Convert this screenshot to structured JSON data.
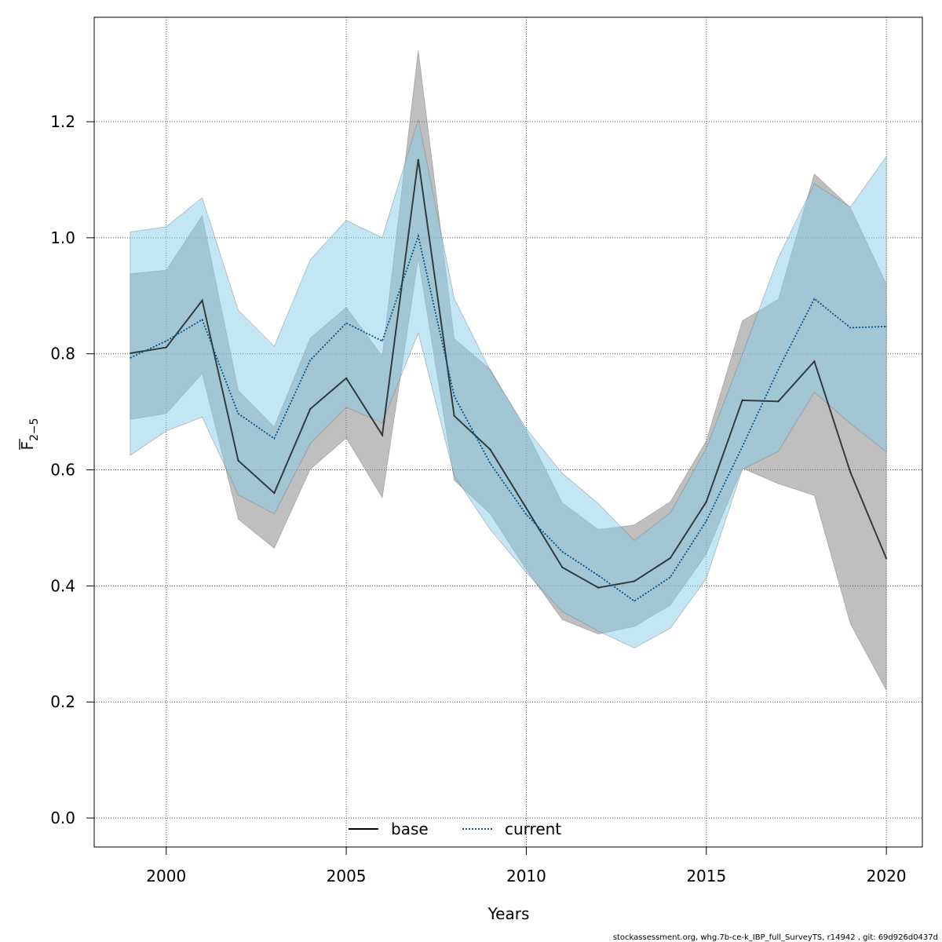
{
  "chart_data": {
    "type": "line",
    "title": "",
    "xlabel": "Years",
    "ylabel": "F",
    "ylabel_subscript": "2−5",
    "xlim": [
      1998,
      2021
    ],
    "ylim": [
      -0.05,
      1.38
    ],
    "xticks": [
      2000,
      2005,
      2010,
      2015,
      2020
    ],
    "xtick_labels": [
      "2000",
      "2005",
      "2010",
      "2015",
      "2020"
    ],
    "yticks": [
      0.0,
      0.2,
      0.4,
      0.6,
      0.8,
      1.0,
      1.2
    ],
    "ytick_labels": [
      "0.0",
      "0.2",
      "0.4",
      "0.6",
      "0.8",
      "1.0",
      "1.2"
    ],
    "grid": true,
    "legend_position": "bottom-center",
    "x": [
      1999,
      2000,
      2001,
      2002,
      2003,
      2004,
      2005,
      2006,
      2007,
      2008,
      2009,
      2010,
      2011,
      2012,
      2013,
      2014,
      2015,
      2016,
      2017,
      2018,
      2019,
      2020
    ],
    "series": [
      {
        "name": "base",
        "color": "#000000",
        "line": "solid",
        "band_color": "#808080",
        "values": [
          0.801,
          0.811,
          0.892,
          0.616,
          0.56,
          0.705,
          0.758,
          0.66,
          1.135,
          0.693,
          0.635,
          0.534,
          0.432,
          0.397,
          0.408,
          0.448,
          0.545,
          0.72,
          0.718,
          0.787,
          0.596,
          0.447
        ],
        "lower": [
          0.687,
          0.697,
          0.766,
          0.515,
          0.465,
          0.601,
          0.655,
          0.552,
          0.965,
          0.582,
          0.524,
          0.428,
          0.342,
          0.317,
          0.33,
          0.367,
          0.455,
          0.603,
          0.576,
          0.556,
          0.335,
          0.22
        ],
        "upper": [
          0.938,
          0.944,
          1.038,
          0.737,
          0.674,
          0.827,
          0.88,
          0.796,
          1.323,
          0.826,
          0.773,
          0.667,
          0.543,
          0.497,
          0.505,
          0.545,
          0.65,
          0.857,
          0.894,
          1.11,
          1.052,
          0.92
        ]
      },
      {
        "name": "current",
        "color": "#00558c",
        "line": "dotted",
        "band_color": "#87ceeb",
        "values": [
          0.793,
          0.822,
          0.859,
          0.697,
          0.654,
          0.789,
          0.853,
          0.822,
          1.003,
          0.727,
          0.611,
          0.523,
          0.459,
          0.418,
          0.374,
          0.415,
          0.512,
          0.64,
          0.773,
          0.895,
          0.845,
          0.847
        ],
        "lower": [
          0.625,
          0.667,
          0.691,
          0.557,
          0.524,
          0.645,
          0.708,
          0.681,
          0.836,
          0.59,
          0.497,
          0.423,
          0.356,
          0.322,
          0.293,
          0.327,
          0.413,
          0.601,
          0.632,
          0.734,
          0.68,
          0.631
        ],
        "upper": [
          1.01,
          1.019,
          1.069,
          0.875,
          0.813,
          0.962,
          1.03,
          1.0,
          1.204,
          0.895,
          0.771,
          0.671,
          0.594,
          0.542,
          0.478,
          0.526,
          0.637,
          0.799,
          0.966,
          1.093,
          1.053,
          1.14
        ]
      }
    ]
  },
  "footer": "stockassessment.org, whg.7b-ce-k_IBP_full_SurveyTS, r14942 , git: 69d926d0437d"
}
